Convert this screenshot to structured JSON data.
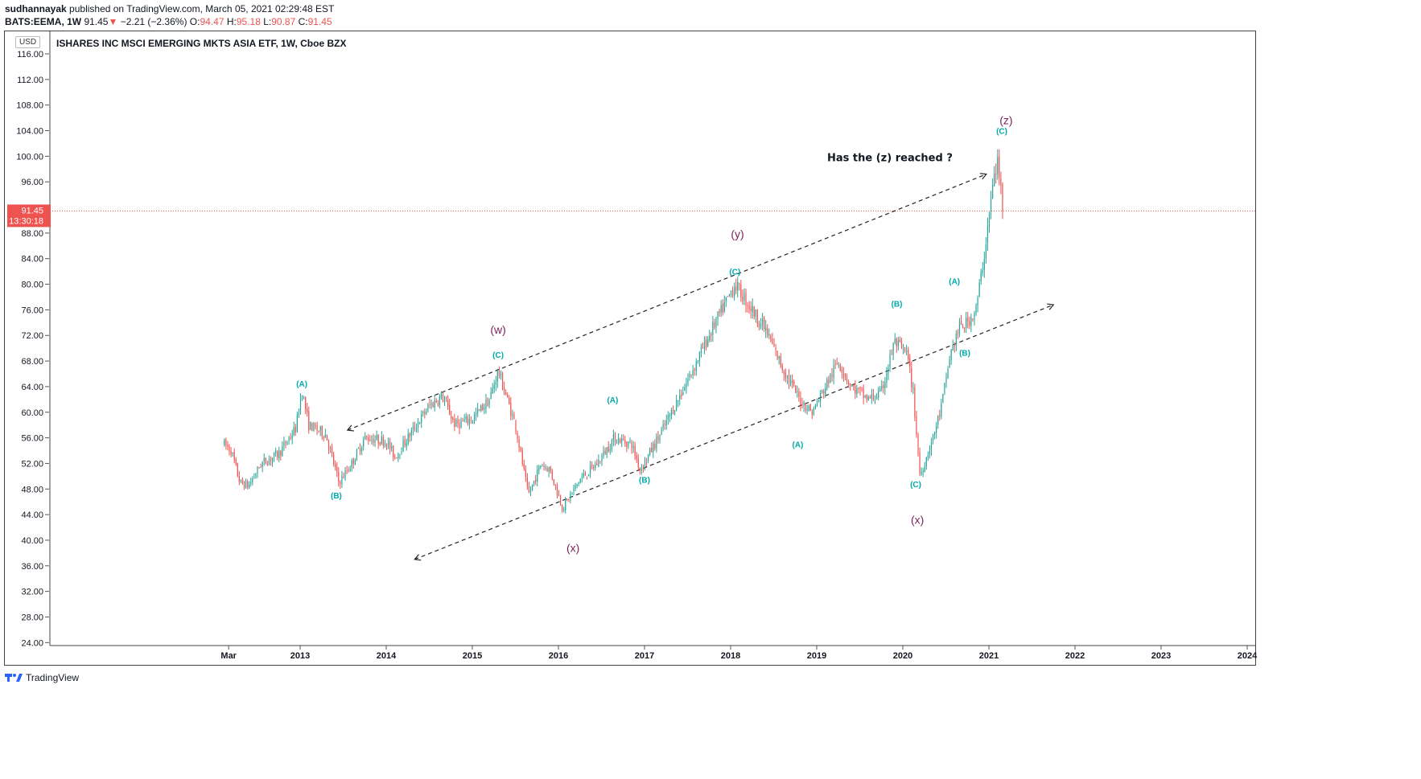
{
  "header": {
    "author": "sudhannayak",
    "published_text": "published on TradingView.com, March 05, 2021 02:29:48 EST",
    "symbol": "BATS:EEMA, 1W",
    "last": "91.45",
    "arrow": "▼",
    "change": "−2.21 (−2.36%)",
    "o_label": "O:",
    "o": "94.47",
    "h_label": "H:",
    "h": "95.18",
    "l_label": "L:",
    "l": "90.87",
    "c_label": "C:",
    "c": "91.45"
  },
  "currency": "USD",
  "chart_title": "ISHARES INC MSCI EMERGING MKTS ASIA ETF, 1W, Cboe BZX",
  "footer_brand": "TradingView",
  "colors": {
    "up": "#26a69a",
    "down": "#ef5350",
    "wave_minor": "#00aaaa",
    "wave_major": "#7b1f5a",
    "price_line": "#ef5350"
  },
  "chart_data": {
    "type": "candlestick",
    "title": "ISHARES INC MSCI EMERGING MKTS ASIA ETF, 1W, Cboe BZX",
    "interval": "1W",
    "ylim": [
      23,
      118
    ],
    "y_ticks": [
      "116.00",
      "112.00",
      "108.00",
      "104.00",
      "100.00",
      "96.00",
      "92.00",
      "88.00",
      "84.00",
      "80.00",
      "76.00",
      "72.00",
      "68.00",
      "64.00",
      "60.00",
      "56.00",
      "52.00",
      "48.00",
      "44.00",
      "40.00",
      "36.00",
      "32.00",
      "28.00",
      "24.00"
    ],
    "x_ticks": [
      {
        "label": "Mar",
        "t": 2012.17
      },
      {
        "label": "2013",
        "t": 2013.0
      },
      {
        "label": "2014",
        "t": 2014.0
      },
      {
        "label": "2015",
        "t": 2015.0
      },
      {
        "label": "2016",
        "t": 2016.0
      },
      {
        "label": "2017",
        "t": 2017.0
      },
      {
        "label": "2018",
        "t": 2018.0
      },
      {
        "label": "2019",
        "t": 2019.0
      },
      {
        "label": "2020",
        "t": 2020.0
      },
      {
        "label": "2021",
        "t": 2021.0
      },
      {
        "label": "2022",
        "t": 2022.0
      },
      {
        "label": "2023",
        "t": 2023.0
      },
      {
        "label": "2024",
        "t": 2024.0
      }
    ],
    "price_path": [
      [
        2012.12,
        55
      ],
      [
        2012.2,
        54
      ],
      [
        2012.3,
        49
      ],
      [
        2012.4,
        48.5
      ],
      [
        2012.55,
        52
      ],
      [
        2012.75,
        53.5
      ],
      [
        2012.95,
        57.5
      ],
      [
        2013.02,
        63.5
      ],
      [
        2013.1,
        58
      ],
      [
        2013.3,
        56.5
      ],
      [
        2013.45,
        49
      ],
      [
        2013.6,
        52
      ],
      [
        2013.75,
        56
      ],
      [
        2014.0,
        55.5
      ],
      [
        2014.1,
        53
      ],
      [
        2014.3,
        57
      ],
      [
        2014.5,
        61
      ],
      [
        2014.65,
        62.5
      ],
      [
        2014.8,
        58
      ],
      [
        2015.0,
        59
      ],
      [
        2015.2,
        62
      ],
      [
        2015.3,
        66.5
      ],
      [
        2015.5,
        58
      ],
      [
        2015.65,
        47
      ],
      [
        2015.8,
        52
      ],
      [
        2015.9,
        51
      ],
      [
        2016.05,
        45
      ],
      [
        2016.25,
        49.5
      ],
      [
        2016.45,
        52
      ],
      [
        2016.65,
        56
      ],
      [
        2016.85,
        55
      ],
      [
        2016.95,
        51
      ],
      [
        2017.2,
        57
      ],
      [
        2017.5,
        65
      ],
      [
        2017.75,
        72
      ],
      [
        2018.05,
        80
      ],
      [
        2018.2,
        77
      ],
      [
        2018.4,
        73
      ],
      [
        2018.6,
        67
      ],
      [
        2018.8,
        62
      ],
      [
        2018.95,
        60
      ],
      [
        2019.1,
        64
      ],
      [
        2019.25,
        68
      ],
      [
        2019.4,
        64
      ],
      [
        2019.6,
        62
      ],
      [
        2019.75,
        63
      ],
      [
        2019.9,
        71
      ],
      [
        2020.05,
        69
      ],
      [
        2020.12,
        63
      ],
      [
        2020.2,
        50
      ],
      [
        2020.35,
        56
      ],
      [
        2020.45,
        61
      ],
      [
        2020.55,
        69
      ],
      [
        2020.65,
        73
      ],
      [
        2020.75,
        74
      ],
      [
        2020.85,
        76
      ],
      [
        2020.95,
        85
      ],
      [
        2021.05,
        96
      ],
      [
        2021.1,
        99
      ],
      [
        2021.17,
        91.45
      ]
    ],
    "channel_lines": [
      {
        "from": [
          2013.55,
          57.2
        ],
        "to": [
          2020.97,
          97.2
        ]
      },
      {
        "from": [
          2014.33,
          37
        ],
        "to": [
          2021.75,
          76.8
        ]
      }
    ],
    "last_price": 91.45,
    "price_label": "91.45",
    "countdown_label": "13:30:18",
    "annotation": {
      "text": "Has the (z) reached ?",
      "t": 2019.85,
      "y": 99.2
    },
    "wave_labels": [
      {
        "text": "(A)",
        "t": 2013.02,
        "y": 64,
        "style": "minor"
      },
      {
        "text": "(B)",
        "t": 2013.42,
        "y": 46.5,
        "style": "minor"
      },
      {
        "text": "(C)",
        "t": 2015.3,
        "y": 68.5,
        "style": "minor"
      },
      {
        "text": "(w)",
        "t": 2015.3,
        "y": 72.3,
        "style": "major"
      },
      {
        "text": "(x)",
        "t": 2016.17,
        "y": 38.2,
        "style": "major"
      },
      {
        "text": "(A)",
        "t": 2016.63,
        "y": 61.5,
        "style": "minor"
      },
      {
        "text": "(B)",
        "t": 2017.0,
        "y": 49,
        "style": "minor"
      },
      {
        "text": "(C)",
        "t": 2018.05,
        "y": 81.5,
        "style": "minor"
      },
      {
        "text": "(y)",
        "t": 2018.08,
        "y": 87.2,
        "style": "major"
      },
      {
        "text": "(A)",
        "t": 2018.78,
        "y": 54.5,
        "style": "minor"
      },
      {
        "text": "(B)",
        "t": 2019.93,
        "y": 76.5,
        "style": "minor"
      },
      {
        "text": "(C)",
        "t": 2020.15,
        "y": 48.3,
        "style": "minor"
      },
      {
        "text": "(x)",
        "t": 2020.17,
        "y": 42.6,
        "style": "major"
      },
      {
        "text": "(A)",
        "t": 2020.6,
        "y": 80,
        "style": "minor"
      },
      {
        "text": "(B)",
        "t": 2020.72,
        "y": 68.8,
        "style": "minor"
      },
      {
        "text": "(C)",
        "t": 2021.15,
        "y": 103.5,
        "style": "minor"
      },
      {
        "text": "(z)",
        "t": 2021.2,
        "y": 105,
        "style": "major"
      }
    ]
  }
}
